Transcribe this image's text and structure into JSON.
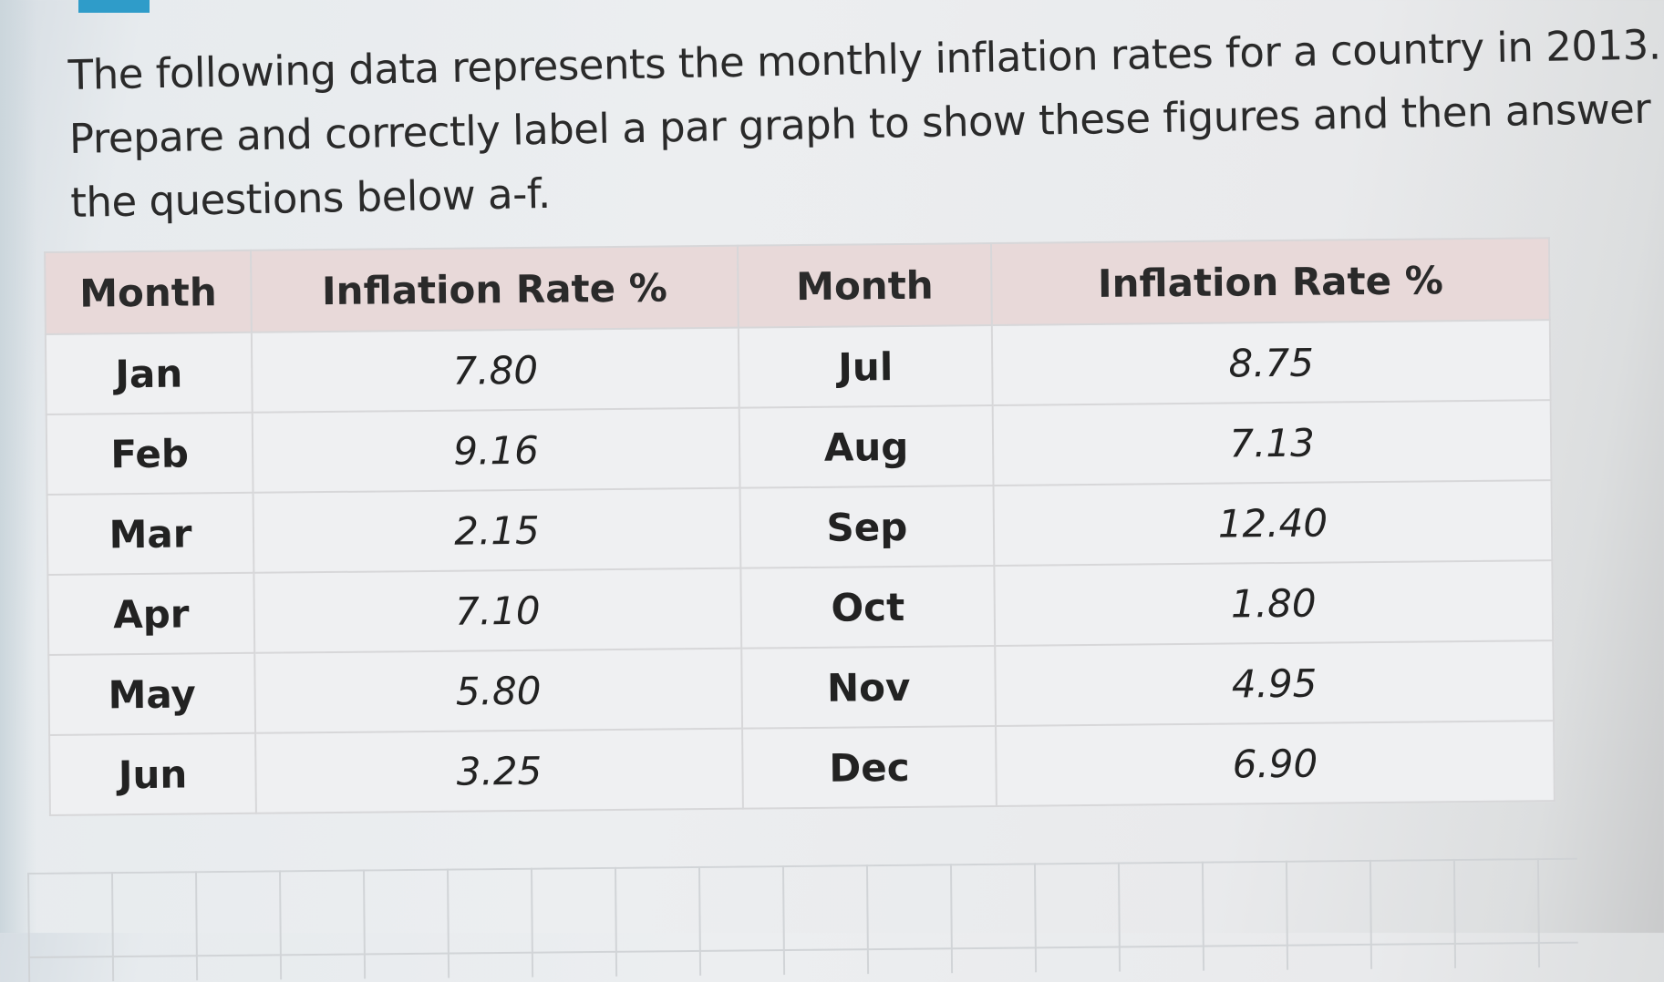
{
  "intro": {
    "line1": "The following data represents the monthly inflation rates for a country in 2013.",
    "line2": "Prepare and correctly label a par graph to show these figures and then answer",
    "line3": "the questions below a-f."
  },
  "table": {
    "headers": [
      "Month",
      "Inflation Rate %",
      "Month",
      "Inflation Rate %"
    ],
    "rows": [
      {
        "m1": "Jan",
        "r1": "7.80",
        "m2": "Jul",
        "r2": "8.75"
      },
      {
        "m1": "Feb",
        "r1": "9.16",
        "m2": "Aug",
        "r2": "7.13"
      },
      {
        "m1": "Mar",
        "r1": "2.15",
        "m2": "Sep",
        "r2": "12.40"
      },
      {
        "m1": "Apr",
        "r1": "7.10",
        "m2": "Oct",
        "r2": "1.80"
      },
      {
        "m1": "May",
        "r1": "5.80",
        "m2": "Nov",
        "r2": "4.95"
      },
      {
        "m1": "Jun",
        "r1": "3.25",
        "m2": "Dec",
        "r2": "6.90"
      }
    ]
  },
  "colors": {
    "header_bg": "#e8d9d9",
    "cell_bg": "#eff0f2",
    "tab_marker": "#2f9cc9"
  }
}
